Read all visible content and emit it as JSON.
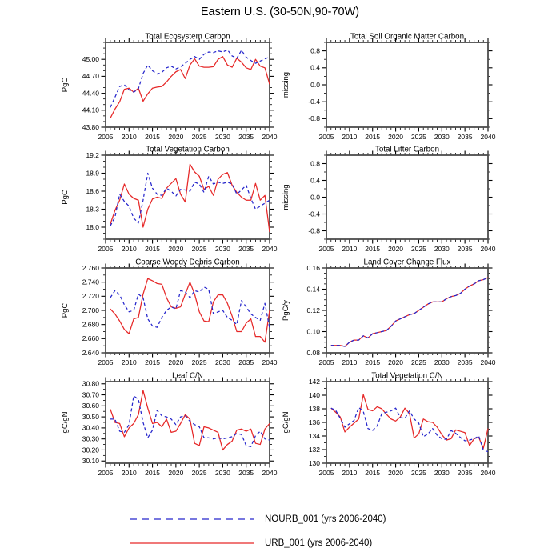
{
  "title": "Eastern U.S. (30-50N,90-70W)",
  "legend": [
    {
      "label": "NOURB_001 (yrs 2006-2040)",
      "color": "#2626cc",
      "swatch_dash": "8,7",
      "plot_dash": "4,3"
    },
    {
      "label": "URB_001 (yrs 2006-2040)",
      "color": "#e62828",
      "swatch_dash": "none",
      "plot_dash": "none"
    }
  ],
  "x_axis": {
    "lim": [
      2005,
      2040
    ],
    "ticks": [
      2005,
      2010,
      2015,
      2020,
      2025,
      2030,
      2035,
      2040
    ],
    "labels": [
      "2005",
      "2010",
      "2015",
      "2020",
      "2025",
      "2030",
      "2035",
      "2040"
    ],
    "minor_step": 1,
    "start_year": 2006
  },
  "chart_data": [
    {
      "type": "line",
      "slug": "total-ecosystem-carbon",
      "title": "Total Ecosystem Carbon",
      "ylabel": "PgC",
      "ylim": [
        43.8,
        45.3
      ],
      "yticks": [
        43.8,
        44.1,
        44.4,
        44.7,
        45.0
      ],
      "yticklabels": [
        "43.80",
        "44.10",
        "44.40",
        "44.70",
        "45.00"
      ],
      "yminor_step": 0.1,
      "series": [
        {
          "name": "NOURB_001",
          "values": [
            44.15,
            44.33,
            44.52,
            44.55,
            44.46,
            44.42,
            44.48,
            44.75,
            44.9,
            44.8,
            44.74,
            44.77,
            44.85,
            44.88,
            44.83,
            44.87,
            44.93,
            45.0,
            45.05,
            45.0,
            45.09,
            45.13,
            45.12,
            45.15,
            45.13,
            45.17,
            45.06,
            45.02,
            45.16,
            45.04,
            44.98,
            44.93,
            44.97,
            45.01,
            45.04
          ]
        },
        {
          "name": "URB_001",
          "values": [
            43.96,
            44.12,
            44.25,
            44.47,
            44.49,
            44.42,
            44.49,
            44.26,
            44.39,
            44.49,
            44.51,
            44.52,
            44.6,
            44.7,
            44.78,
            44.82,
            44.66,
            44.9,
            45.01,
            44.88,
            44.86,
            44.86,
            44.87,
            45.0,
            45.05,
            44.9,
            44.86,
            45.02,
            44.95,
            44.85,
            44.82,
            45.0,
            44.88,
            44.85,
            44.56
          ]
        }
      ]
    },
    {
      "type": "line",
      "slug": "total-soil-organic-matter-carbon",
      "title": "Total Soil Organic Matter Carbon",
      "ylabel": "missing",
      "ylim": [
        -1.0,
        1.0
      ],
      "yticks": [
        -0.8,
        -0.4,
        0.0,
        0.4,
        0.8
      ],
      "yticklabels": [
        "-0.8",
        "-0.4",
        "0.0",
        "0.4",
        "0.8"
      ],
      "yminor_step": 0.2,
      "series": []
    },
    {
      "type": "line",
      "slug": "total-vegetation-carbon",
      "title": "Total Vegetation Carbon",
      "ylabel": "PgC",
      "ylim": [
        17.8,
        19.2
      ],
      "yticks": [
        18.0,
        18.3,
        18.6,
        18.9,
        19.2
      ],
      "yticklabels": [
        "18.0",
        "18.3",
        "18.6",
        "18.9",
        "19.2"
      ],
      "yminor_step": 0.1,
      "series": [
        {
          "name": "NOURB_001",
          "values": [
            18.02,
            18.17,
            18.55,
            18.43,
            18.35,
            18.15,
            18.07,
            18.45,
            18.9,
            18.65,
            18.55,
            18.53,
            18.65,
            18.6,
            18.52,
            18.63,
            18.62,
            18.6,
            18.75,
            18.72,
            18.58,
            18.85,
            18.72,
            18.75,
            18.73,
            18.75,
            18.72,
            18.55,
            18.62,
            18.7,
            18.48,
            18.3,
            18.35,
            18.4,
            18.45
          ]
        },
        {
          "name": "URB_001",
          "values": [
            18.05,
            18.28,
            18.45,
            18.72,
            18.55,
            18.48,
            18.45,
            18.0,
            18.3,
            18.47,
            18.5,
            18.48,
            18.65,
            18.73,
            18.81,
            18.55,
            18.42,
            19.05,
            18.92,
            18.85,
            18.63,
            18.68,
            18.53,
            18.8,
            18.88,
            18.91,
            18.7,
            18.58,
            18.5,
            18.45,
            18.45,
            18.73,
            18.45,
            18.53,
            17.92
          ]
        }
      ]
    },
    {
      "type": "line",
      "slug": "total-litter-carbon",
      "title": "Total Litter Carbon",
      "ylabel": "missing",
      "ylim": [
        -1.0,
        1.0
      ],
      "yticks": [
        -0.8,
        -0.4,
        0.0,
        0.4,
        0.8
      ],
      "yticklabels": [
        "-0.8",
        "-0.4",
        "0.0",
        "0.4",
        "0.8"
      ],
      "yminor_step": 0.2,
      "series": []
    },
    {
      "type": "line",
      "slug": "coarse-woody-debris-carbon",
      "title": "Coarse Woody Debris Carbon",
      "ylabel": "PgC",
      "ylim": [
        2.64,
        2.76
      ],
      "yticks": [
        2.64,
        2.66,
        2.68,
        2.7,
        2.72,
        2.74,
        2.76
      ],
      "yticklabels": [
        "2.640",
        "2.660",
        "2.680",
        "2.700",
        "2.720",
        "2.740",
        "2.760"
      ],
      "yminor_step": 0.01,
      "series": [
        {
          "name": "NOURB_001",
          "values": [
            2.718,
            2.728,
            2.722,
            2.708,
            2.698,
            2.7,
            2.723,
            2.718,
            2.688,
            2.678,
            2.676,
            2.69,
            2.7,
            2.705,
            2.702,
            2.728,
            2.726,
            2.718,
            2.728,
            2.726,
            2.733,
            2.73,
            2.695,
            2.698,
            2.7,
            2.69,
            2.686,
            2.68,
            2.714,
            2.705,
            2.695,
            2.69,
            2.686,
            2.71,
            2.675
          ]
        },
        {
          "name": "URB_001",
          "values": [
            2.702,
            2.695,
            2.685,
            2.673,
            2.667,
            2.688,
            2.69,
            2.723,
            2.745,
            2.742,
            2.738,
            2.737,
            2.718,
            2.705,
            2.703,
            2.705,
            2.723,
            2.74,
            2.723,
            2.698,
            2.685,
            2.684,
            2.712,
            2.722,
            2.722,
            2.71,
            2.692,
            2.67,
            2.67,
            2.682,
            2.688,
            2.663,
            2.663,
            2.655,
            2.7
          ]
        }
      ]
    },
    {
      "type": "line",
      "slug": "land-cover-change-flux",
      "title": "Land Cover Change Flux",
      "ylabel": "PgC/y",
      "ylim": [
        0.08,
        0.16
      ],
      "yticks": [
        0.08,
        0.1,
        0.12,
        0.14,
        0.16
      ],
      "yticklabels": [
        "0.08",
        "0.10",
        "0.12",
        "0.14",
        "0.16"
      ],
      "yminor_step": 0.005,
      "series": [
        {
          "name": "NOURB_001",
          "values": [
            0.087,
            0.087,
            0.087,
            0.086,
            0.09,
            0.092,
            0.092,
            0.096,
            0.094,
            0.098,
            0.099,
            0.1,
            0.101,
            0.105,
            0.11,
            0.112,
            0.114,
            0.116,
            0.117,
            0.12,
            0.123,
            0.126,
            0.128,
            0.128,
            0.128,
            0.131,
            0.133,
            0.134,
            0.136,
            0.14,
            0.143,
            0.145,
            0.148,
            0.149,
            0.151
          ]
        },
        {
          "name": "URB_001",
          "values": [
            0.087,
            0.087,
            0.087,
            0.086,
            0.09,
            0.092,
            0.092,
            0.096,
            0.094,
            0.098,
            0.099,
            0.1,
            0.101,
            0.105,
            0.11,
            0.112,
            0.114,
            0.116,
            0.117,
            0.12,
            0.123,
            0.126,
            0.128,
            0.128,
            0.128,
            0.131,
            0.133,
            0.134,
            0.136,
            0.14,
            0.143,
            0.145,
            0.148,
            0.149,
            0.151
          ]
        }
      ]
    },
    {
      "type": "line",
      "slug": "leaf-cn",
      "title": "Leaf C/N",
      "ylabel": "gC/gN",
      "ylim": [
        30.08,
        30.82
      ],
      "yticks": [
        30.1,
        30.2,
        30.3,
        30.4,
        30.5,
        30.6,
        30.7,
        30.8
      ],
      "yticklabels": [
        "30.10",
        "30.20",
        "30.30",
        "30.40",
        "30.50",
        "30.60",
        "30.70",
        "30.80"
      ],
      "yminor_step": 0.05,
      "series": [
        {
          "name": "NOURB_001",
          "values": [
            30.48,
            30.48,
            30.37,
            30.36,
            30.43,
            30.69,
            30.66,
            30.45,
            30.31,
            30.38,
            30.56,
            30.51,
            30.5,
            30.48,
            30.43,
            30.5,
            30.51,
            30.46,
            30.43,
            30.41,
            30.31,
            30.31,
            30.3,
            30.31,
            30.3,
            30.31,
            30.32,
            30.35,
            30.34,
            30.24,
            30.23,
            30.33,
            30.37,
            30.3,
            30.29
          ]
        },
        {
          "name": "URB_001",
          "values": [
            30.57,
            30.45,
            30.44,
            30.32,
            30.4,
            30.44,
            30.52,
            30.74,
            30.58,
            30.44,
            30.45,
            30.41,
            30.48,
            30.36,
            30.37,
            30.44,
            30.52,
            30.48,
            30.26,
            30.24,
            30.41,
            30.4,
            30.38,
            30.36,
            30.2,
            30.25,
            30.28,
            30.38,
            30.39,
            30.37,
            30.39,
            30.26,
            30.25,
            30.39,
            30.44
          ]
        }
      ]
    },
    {
      "type": "line",
      "slug": "total-vegetation-cn",
      "title": "Total Vegetation C/N",
      "ylabel": "gC/gN",
      "ylim": [
        130,
        142
      ],
      "yticks": [
        130,
        132,
        134,
        136,
        138,
        140,
        142
      ],
      "yticklabels": [
        "130",
        "132",
        "134",
        "136",
        "138",
        "140",
        "142"
      ],
      "yminor_step": 1,
      "series": [
        {
          "name": "NOURB_001",
          "values": [
            138.1,
            137.8,
            136.6,
            135.3,
            135.8,
            136.3,
            138.2,
            137.6,
            135.1,
            134.8,
            135.5,
            137.3,
            137.5,
            137.7,
            138.1,
            136.7,
            136.6,
            137.7,
            136.5,
            135.9,
            133.9,
            134.3,
            135.1,
            134.1,
            133.6,
            133.5,
            134.8,
            134.4,
            133.8,
            133.3,
            133.4,
            133.6,
            134.0,
            131.9,
            131.7
          ]
        },
        {
          "name": "URB_001",
          "values": [
            138.1,
            137.5,
            136.8,
            134.6,
            135.3,
            135.9,
            136.5,
            140.1,
            137.9,
            137.7,
            138.3,
            138.0,
            137.2,
            136.5,
            136.2,
            136.8,
            138.1,
            137.3,
            133.7,
            134.3,
            136.5,
            136.1,
            136.0,
            135.3,
            134.2,
            133.4,
            133.6,
            134.9,
            134.7,
            134.5,
            132.6,
            133.6,
            133.8,
            132.2,
            135.1
          ]
        }
      ]
    }
  ]
}
